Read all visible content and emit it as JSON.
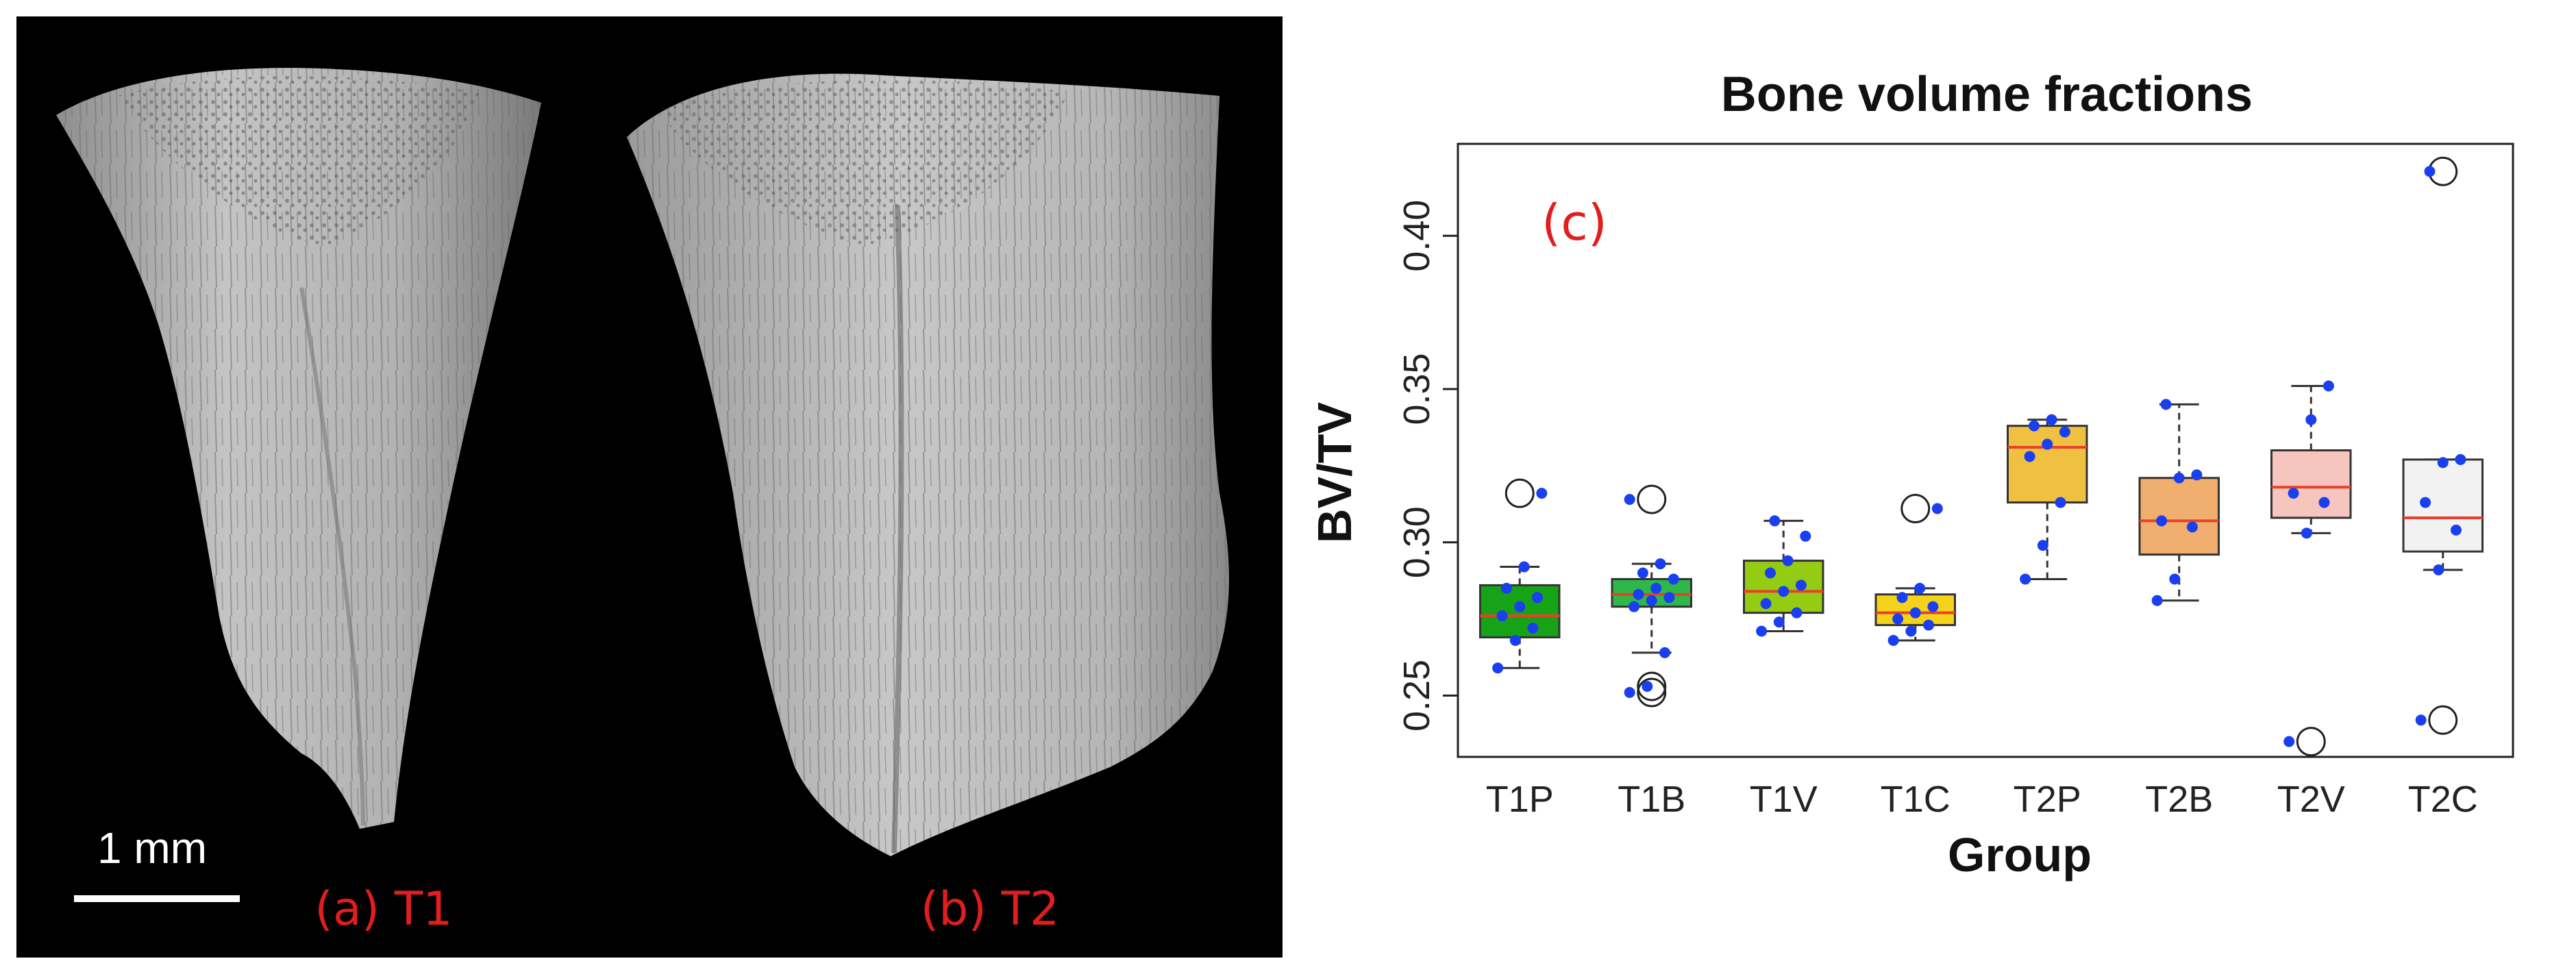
{
  "panels": [
    {
      "label": "(a) T1"
    },
    {
      "label": "(b) T2"
    }
  ],
  "scale_bar_label": "1 mm",
  "colors": {
    "background": "#000000",
    "bone": "#b9b9b9",
    "label": "#e21d1d",
    "median": "#e8412b",
    "point": "#1a3ff0"
  },
  "chart_data": {
    "type": "box",
    "title": "Bone volume fractions",
    "panel_label": "(c)",
    "xlabel": "Group",
    "ylabel": "BV/TV",
    "ylim": [
      0.23,
      0.43
    ],
    "yticks": [
      0.25,
      0.3,
      0.35,
      0.4
    ],
    "ytick_labels": [
      "0.25",
      "0.30",
      "0.35",
      "0.40"
    ],
    "grid": false,
    "categories": [
      "T1P",
      "T1B",
      "T1V",
      "T1C",
      "T2P",
      "T2B",
      "T2V",
      "T2C"
    ],
    "boxes": [
      {
        "name": "T1P",
        "color": "#17a317",
        "whisker_low": 0.259,
        "q1": 0.269,
        "median": 0.276,
        "q3": 0.286,
        "whisker_high": 0.292,
        "outliers": [
          0.316
        ],
        "points": [
          0.259,
          0.268,
          0.272,
          0.276,
          0.279,
          0.282,
          0.285,
          0.292,
          0.316
        ]
      },
      {
        "name": "T1B",
        "color": "#2fb84a",
        "whisker_low": 0.264,
        "q1": 0.279,
        "median": 0.283,
        "q3": 0.288,
        "whisker_high": 0.293,
        "outliers": [
          0.314,
          0.253,
          0.251
        ],
        "points": [
          0.251,
          0.253,
          0.264,
          0.279,
          0.281,
          0.282,
          0.283,
          0.285,
          0.288,
          0.29,
          0.293,
          0.314
        ]
      },
      {
        "name": "T1V",
        "color": "#93cc12",
        "whisker_low": 0.271,
        "q1": 0.277,
        "median": 0.284,
        "q3": 0.294,
        "whisker_high": 0.307,
        "outliers": [],
        "points": [
          0.271,
          0.274,
          0.277,
          0.28,
          0.284,
          0.286,
          0.29,
          0.294,
          0.302,
          0.307
        ]
      },
      {
        "name": "T1C",
        "color": "#f5d31b",
        "whisker_low": 0.268,
        "q1": 0.273,
        "median": 0.277,
        "q3": 0.283,
        "whisker_high": 0.285,
        "outliers": [
          0.311
        ],
        "points": [
          0.268,
          0.271,
          0.273,
          0.275,
          0.277,
          0.279,
          0.282,
          0.285,
          0.311
        ]
      },
      {
        "name": "T2P",
        "color": "#f0c041",
        "whisker_low": 0.288,
        "q1": 0.313,
        "median": 0.331,
        "q3": 0.338,
        "whisker_high": 0.34,
        "outliers": [],
        "points": [
          0.288,
          0.299,
          0.313,
          0.328,
          0.332,
          0.336,
          0.338,
          0.34
        ]
      },
      {
        "name": "T2B",
        "color": "#f0ae6f",
        "whisker_low": 0.281,
        "q1": 0.296,
        "median": 0.307,
        "q3": 0.321,
        "whisker_high": 0.345,
        "outliers": [],
        "points": [
          0.281,
          0.288,
          0.305,
          0.307,
          0.321,
          0.322,
          0.345
        ]
      },
      {
        "name": "T2V",
        "color": "#f6c6be",
        "whisker_low": 0.303,
        "q1": 0.308,
        "median": 0.318,
        "q3": 0.33,
        "whisker_high": 0.351,
        "outliers": [
          0.235
        ],
        "points": [
          0.235,
          0.303,
          0.313,
          0.316,
          0.34,
          0.351
        ]
      },
      {
        "name": "T2C",
        "color": "#f2f2f2",
        "whisker_low": 0.291,
        "q1": 0.297,
        "median": 0.308,
        "q3": 0.327,
        "whisker_high": 0.327,
        "outliers": [
          0.421,
          0.242
        ],
        "points": [
          0.242,
          0.291,
          0.304,
          0.313,
          0.326,
          0.327,
          0.421
        ]
      }
    ]
  }
}
